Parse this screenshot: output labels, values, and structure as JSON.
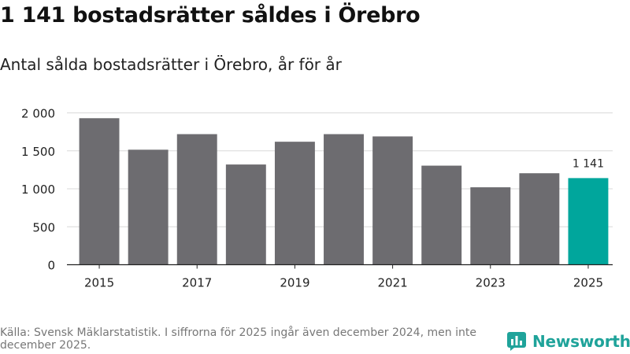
{
  "header": {
    "title": "1 141 bostadsrätter såldes i Örebro",
    "subtitle": "Antal sålda bostadsrätter i Örebro, år för år"
  },
  "footer": {
    "source": "Källa: Svensk Mäklarstatistik. I siffrorna för 2025 ingår även december 2024, men inte december 2025.",
    "brand": "Newsworthy"
  },
  "colors": {
    "bar": "#6d6c70",
    "highlight": "#00a69c",
    "grid": "#d9d9d9",
    "axis": "#222222",
    "brand": "#1fa39a"
  },
  "chart_data": {
    "type": "bar",
    "title": "Antal sålda bostadsrätter i Örebro, år för år",
    "xlabel": "",
    "ylabel": "",
    "categories": [
      "2015",
      "2016",
      "2017",
      "2018",
      "2019",
      "2020",
      "2021",
      "2022",
      "2023",
      "2024",
      "2025"
    ],
    "values": [
      1930,
      1515,
      1720,
      1320,
      1620,
      1720,
      1690,
      1305,
      1020,
      1205,
      1141
    ],
    "x_tick_labels": [
      "2015",
      "",
      "2017",
      "",
      "2019",
      "",
      "2021",
      "",
      "2023",
      "",
      "2025"
    ],
    "y_ticks": [
      0,
      500,
      1000,
      1500,
      2000
    ],
    "y_tick_labels": [
      "0",
      "500",
      "1 000",
      "1 500",
      "2 000"
    ],
    "ylim": [
      0,
      2000
    ],
    "highlight_index": 10,
    "annotations": [
      {
        "category": "2025",
        "text": "1 141"
      }
    ],
    "grid": true
  }
}
